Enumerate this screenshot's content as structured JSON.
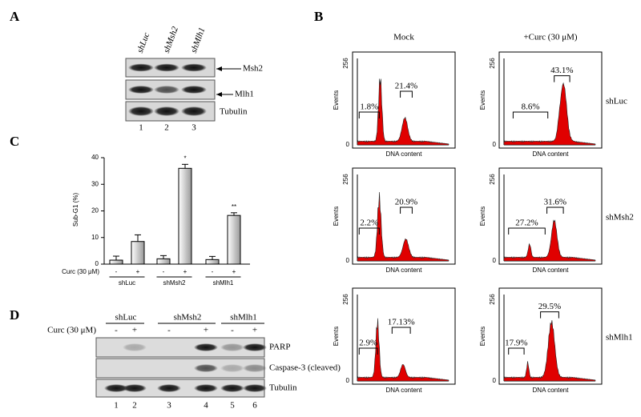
{
  "panel_a": {
    "label": "A",
    "lanes": [
      "shLuc",
      "shMsh2",
      "shMlh1"
    ],
    "bands": [
      "Msh2",
      "Mlh1",
      "Tubulin"
    ],
    "lane_numbers": [
      "1",
      "2",
      "3"
    ]
  },
  "panel_b": {
    "label": "B",
    "columns": [
      "Mock",
      "+Curc (30 μM)"
    ],
    "rows": [
      "shLuc",
      "shMsh2",
      "shMlh1"
    ],
    "y_label": "Events",
    "y_top": "256",
    "y_bottom": "0",
    "x_label": "DNA content",
    "histograms": [
      [
        "1.8%",
        "21.4%"
      ],
      [
        "8.6%",
        "43.1%"
      ],
      [
        "2.2%",
        "20.9%"
      ],
      [
        "27.2%",
        "31.6%"
      ],
      [
        "2.9%",
        "17.13%"
      ],
      [
        "17.9%",
        "29.5%"
      ]
    ]
  },
  "chart_data": {
    "type": "bar",
    "panel_label": "C",
    "y_label": "Sub-G1 (%)",
    "categories": [
      "-",
      "+",
      "-",
      "+",
      "-",
      "+"
    ],
    "groups": [
      "shLuc",
      "shMsh2",
      "shMlh1"
    ],
    "row_label": "Curc (30 μM)",
    "series": [
      {
        "values": [
          1.5,
          8.5,
          2,
          36,
          1.7,
          18.3
        ],
        "errors": [
          1.5,
          2.5,
          1.2,
          1.5,
          1.2,
          1
        ],
        "color": "#d9d9d9"
      }
    ],
    "annotations": [
      null,
      null,
      null,
      "*",
      null,
      "**"
    ],
    "ylim": [
      0,
      40
    ],
    "yticks": [
      0,
      10,
      20,
      30,
      40
    ]
  },
  "panel_d": {
    "label": "D",
    "groups": [
      "shLuc",
      "shMsh2",
      "shMlh1"
    ],
    "row_label": "Curc (30 μM)",
    "treatments": [
      "-",
      "+",
      "-",
      "+",
      "-",
      "+"
    ],
    "bands": [
      "PARP",
      "Caspase-3 (cleaved)",
      "Tubulin"
    ],
    "lane_numbers": [
      "1",
      "2",
      "3",
      "4",
      "5",
      "6"
    ]
  }
}
